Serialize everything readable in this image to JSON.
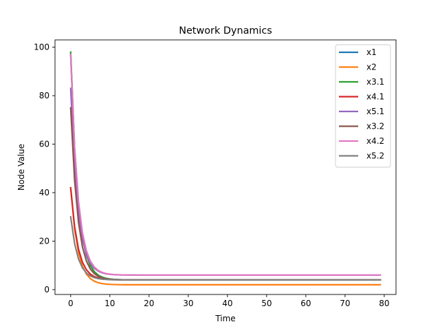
{
  "chart_data": {
    "type": "line",
    "title": "Network Dynamics",
    "xlabel": "Time",
    "ylabel": "Node Value",
    "xlim": [
      -4,
      83
    ],
    "ylim": [
      -2,
      103
    ],
    "xticks": [
      0,
      10,
      20,
      30,
      40,
      50,
      60,
      70,
      80
    ],
    "yticks": [
      0,
      20,
      40,
      60,
      80,
      100
    ],
    "grid": false,
    "legend_position": "upper right",
    "x": [
      0,
      1,
      2,
      3,
      4,
      5,
      6,
      7,
      8,
      9,
      10,
      11,
      12,
      13,
      14,
      15,
      16,
      17,
      18,
      19,
      20,
      21,
      22,
      23,
      24,
      25,
      26,
      27,
      28,
      29,
      30,
      31,
      32,
      33,
      34,
      35,
      36,
      37,
      38,
      39,
      40,
      41,
      42,
      43,
      44,
      45,
      46,
      47,
      48,
      49,
      50,
      51,
      52,
      53,
      54,
      55,
      56,
      57,
      58,
      59,
      60,
      61,
      62,
      63,
      64,
      65,
      66,
      67,
      68,
      69,
      70,
      71,
      72,
      73,
      74,
      75,
      76,
      77,
      78,
      79
    ],
    "series": [
      {
        "name": "x1",
        "color": "#1f77b4",
        "start": 97,
        "end": 4,
        "rate": 0.55
      },
      {
        "name": "x2",
        "color": "#ff7f0e",
        "start": 42,
        "end": 2,
        "rate": 0.55
      },
      {
        "name": "x3.1",
        "color": "#2ca02c",
        "start": 98,
        "end": 4,
        "rate": 0.55
      },
      {
        "name": "x4.1",
        "color": "#d62728",
        "start": 42,
        "end": 4,
        "rate": 0.55
      },
      {
        "name": "x5.1",
        "color": "#9467bd",
        "start": 83,
        "end": 6,
        "rate": 0.55
      },
      {
        "name": "x3.2",
        "color": "#8c564b",
        "start": 75,
        "end": 4,
        "rate": 0.55
      },
      {
        "name": "x4.2",
        "color": "#e377c2",
        "start": 97,
        "end": 6,
        "rate": 0.55
      },
      {
        "name": "x5.2",
        "color": "#7f7f7f",
        "start": 30,
        "end": 4,
        "rate": 0.55
      }
    ]
  }
}
